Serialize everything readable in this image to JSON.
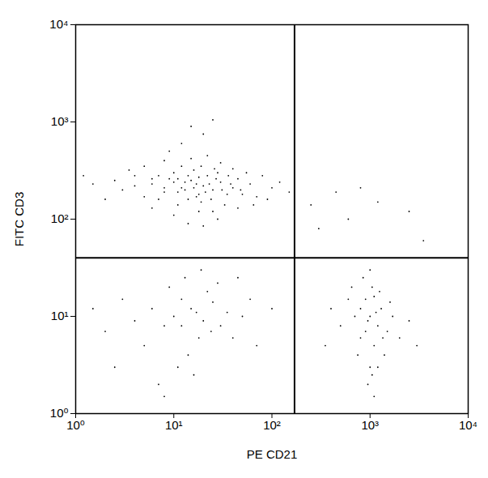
{
  "chart_data": {
    "type": "scatter",
    "x_label": "PE CD21",
    "y_label": "FITC CD3",
    "log": true,
    "color": "#000000",
    "marker": "dot",
    "xlim": [
      1,
      10000
    ],
    "ylim": [
      1,
      10000
    ],
    "xticks": [
      {
        "value": 1,
        "label": "10⁰"
      },
      {
        "value": 10,
        "label": "10¹"
      },
      {
        "value": 100,
        "label": "10²"
      },
      {
        "value": 1000,
        "label": "10³"
      },
      {
        "value": 10000,
        "label": "10⁴"
      }
    ],
    "yticks": [
      {
        "value": 1,
        "label": "10⁰"
      },
      {
        "value": 10,
        "label": "10¹"
      },
      {
        "value": 100,
        "label": "10²"
      },
      {
        "value": 1000,
        "label": "10³"
      },
      {
        "value": 10000,
        "label": "10⁴"
      }
    ],
    "gates": {
      "x": 170,
      "y": 40
    },
    "points": [
      [
        12,
        210
      ],
      [
        15,
        250
      ],
      [
        18,
        180
      ],
      [
        10,
        300
      ],
      [
        20,
        220
      ],
      [
        25,
        200
      ],
      [
        8,
        190
      ],
      [
        14,
        160
      ],
      [
        22,
        280
      ],
      [
        30,
        240
      ],
      [
        6,
        230
      ],
      [
        16,
        320
      ],
      [
        11,
        140
      ],
      [
        35,
        180
      ],
      [
        9,
        260
      ],
      [
        13,
        200
      ],
      [
        17,
        230
      ],
      [
        24,
        160
      ],
      [
        28,
        300
      ],
      [
        40,
        210
      ],
      [
        5,
        170
      ],
      [
        7,
        280
      ],
      [
        19,
        150
      ],
      [
        21,
        190
      ],
      [
        12,
        350
      ],
      [
        45,
        260
      ],
      [
        50,
        180
      ],
      [
        4,
        220
      ],
      [
        3,
        200
      ],
      [
        2.5,
        250
      ],
      [
        60,
        230
      ],
      [
        70,
        170
      ],
      [
        80,
        280
      ],
      [
        100,
        210
      ],
      [
        120,
        240
      ],
      [
        150,
        190
      ],
      [
        2,
        160
      ],
      [
        1.5,
        230
      ],
      [
        1.2,
        280
      ],
      [
        6,
        130
      ],
      [
        10,
        110
      ],
      [
        18,
        120
      ],
      [
        25,
        120
      ],
      [
        33,
        140
      ],
      [
        15,
        420
      ],
      [
        22,
        450
      ],
      [
        9,
        500
      ],
      [
        30,
        380
      ],
      [
        12,
        600
      ],
      [
        40,
        330
      ],
      [
        55,
        300
      ],
      [
        8,
        400
      ],
      [
        5,
        350
      ],
      [
        3.5,
        320
      ],
      [
        14,
        90
      ],
      [
        20,
        85
      ],
      [
        28,
        100
      ],
      [
        45,
        130
      ],
      [
        65,
        140
      ],
      [
        90,
        160
      ],
      [
        18,
        270
      ],
      [
        13,
        240
      ],
      [
        11,
        190
      ],
      [
        16,
        210
      ],
      [
        23,
        230
      ],
      [
        27,
        260
      ],
      [
        8,
        210
      ],
      [
        6,
        260
      ],
      [
        38,
        230
      ],
      [
        48,
        200
      ],
      [
        4,
        280
      ],
      [
        10,
        240
      ],
      [
        17,
        170
      ],
      [
        31,
        200
      ],
      [
        26,
        330
      ],
      [
        14,
        280
      ],
      [
        19,
        350
      ],
      [
        36,
        280
      ],
      [
        7,
        160
      ],
      [
        11,
        260
      ],
      [
        20,
        750
      ],
      [
        15,
        900
      ],
      [
        25,
        1050
      ],
      [
        10,
        10
      ],
      [
        12,
        15
      ],
      [
        8,
        8
      ],
      [
        15,
        12
      ],
      [
        20,
        9
      ],
      [
        18,
        6
      ],
      [
        6,
        12
      ],
      [
        25,
        14
      ],
      [
        30,
        8
      ],
      [
        5,
        5
      ],
      [
        9,
        20
      ],
      [
        14,
        4
      ],
      [
        22,
        18
      ],
      [
        35,
        11
      ],
      [
        4,
        9
      ],
      [
        3,
        15
      ],
      [
        2,
        7
      ],
      [
        1.5,
        12
      ],
      [
        40,
        6
      ],
      [
        50,
        10
      ],
      [
        60,
        15
      ],
      [
        70,
        5
      ],
      [
        11,
        3
      ],
      [
        7,
        2
      ],
      [
        16,
        2.5
      ],
      [
        13,
        25
      ],
      [
        19,
        30
      ],
      [
        28,
        22
      ],
      [
        45,
        25
      ],
      [
        8,
        1.5
      ],
      [
        100,
        12
      ],
      [
        2.5,
        3
      ],
      [
        24,
        7
      ],
      [
        17,
        11
      ],
      [
        12,
        8
      ],
      [
        1000,
        10
      ],
      [
        1100,
        5
      ],
      [
        900,
        15
      ],
      [
        1200,
        8
      ],
      [
        800,
        6
      ],
      [
        1000,
        3
      ],
      [
        1300,
        12
      ],
      [
        700,
        10
      ],
      [
        1500,
        7
      ],
      [
        600,
        15
      ],
      [
        950,
        2
      ],
      [
        1050,
        20
      ],
      [
        1400,
        4
      ],
      [
        1700,
        10
      ],
      [
        500,
        8
      ],
      [
        1100,
        1.5
      ],
      [
        850,
        25
      ],
      [
        1250,
        18
      ],
      [
        2000,
        6
      ],
      [
        2500,
        9
      ],
      [
        400,
        12
      ],
      [
        350,
        5
      ],
      [
        1000,
        30
      ],
      [
        900,
        7
      ],
      [
        1150,
        11
      ],
      [
        750,
        4
      ],
      [
        1600,
        14
      ],
      [
        1050,
        2.5
      ],
      [
        650,
        20
      ],
      [
        3000,
        5
      ],
      [
        1200,
        3
      ],
      [
        950,
        9
      ],
      [
        1350,
        6
      ],
      [
        800,
        12
      ],
      [
        1100,
        16
      ],
      [
        250,
        140
      ],
      [
        300,
        80
      ],
      [
        450,
        190
      ],
      [
        800,
        210
      ],
      [
        1200,
        150
      ],
      [
        2500,
        120
      ],
      [
        3500,
        60
      ],
      [
        600,
        100
      ]
    ]
  }
}
